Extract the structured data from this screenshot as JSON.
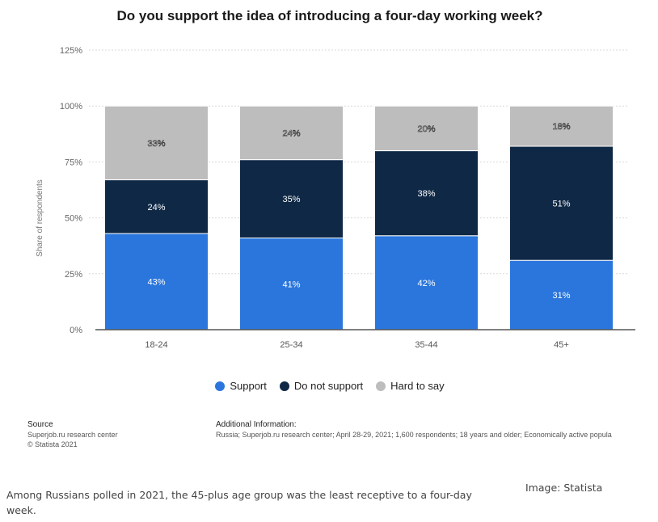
{
  "chart_data": {
    "type": "bar",
    "stacked": true,
    "title": "Do you support the idea of introducing a four-day working week?",
    "ylabel": "Share of respondents",
    "xlabel": "",
    "ylim": [
      0,
      125
    ],
    "y_ticks": [
      "0%",
      "25%",
      "50%",
      "75%",
      "100%",
      "125%"
    ],
    "y_tick_values": [
      0,
      25,
      50,
      75,
      100,
      125
    ],
    "grid": true,
    "legend_position": "bottom",
    "categories": [
      "18-24",
      "25-34",
      "35-44",
      "45+"
    ],
    "series": [
      {
        "name": "Support",
        "color": "#2a76dd",
        "values": [
          43,
          41,
          42,
          31
        ],
        "labels": [
          "43%",
          "41%",
          "42%",
          "31%"
        ]
      },
      {
        "name": "Do not support",
        "color": "#0f2846",
        "values": [
          24,
          35,
          38,
          51
        ],
        "labels": [
          "24%",
          "35%",
          "38%",
          "51%"
        ]
      },
      {
        "name": "Hard to say",
        "color": "#bdbdbd",
        "values": [
          33,
          24,
          20,
          18
        ],
        "labels": [
          "33%",
          "24%",
          "20%",
          "18%"
        ]
      }
    ]
  },
  "source": {
    "heading": "Source",
    "line1": "Superjob.ru research center",
    "line2": "© Statista 2021"
  },
  "additional_info": {
    "heading": "Additional Information:",
    "text": "Russia; Superjob.ru research center; April 28-29, 2021; 1,600 respondents; 18 years and older; Economically active popula"
  },
  "caption": "Among Russians polled in 2021, the 45-plus age group was the least receptive to a four-day week.",
  "credit": "Image: Statista"
}
